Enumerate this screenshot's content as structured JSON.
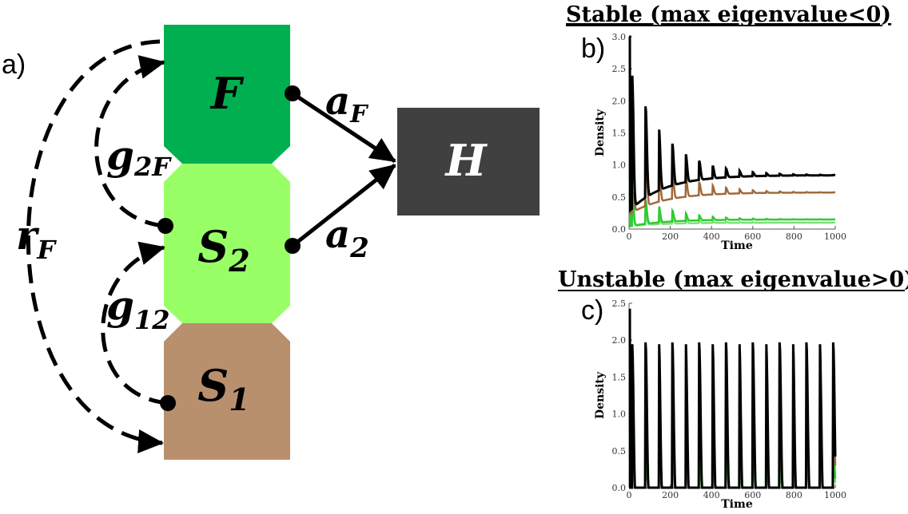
{
  "panels": {
    "a": "a)",
    "b": "b)",
    "c": "c)"
  },
  "diagram": {
    "nodes": {
      "F": {
        "label": "F",
        "color": "#00b050"
      },
      "S2": {
        "label": "S",
        "sub": "2",
        "color": "#99ff66"
      },
      "S1": {
        "label": "S",
        "sub": "1",
        "color": "#b8906e"
      },
      "H": {
        "label": "H",
        "color": "#404040"
      }
    },
    "edges": {
      "aF": {
        "label": "a",
        "sub": "F"
      },
      "a2": {
        "label": "a",
        "sub": "2"
      },
      "g2F": {
        "label": "g",
        "sub": "2F"
      },
      "g12": {
        "label": "g",
        "sub": "12"
      },
      "rF": {
        "label": "r",
        "sub": "F"
      }
    }
  },
  "colors": {
    "black": "#000000",
    "brown": "#a0693c",
    "green": "#2ecc2e",
    "lightgreen": "#7ee07e"
  },
  "chart_data": [
    {
      "type": "line",
      "title": "Stable (max eigenvalue<0)",
      "xlabel": "Time",
      "ylabel": "Density",
      "xlim": [
        0,
        1000
      ],
      "ylim": [
        0,
        3.0
      ],
      "xticks": [
        "0",
        "200",
        "400",
        "600",
        "800",
        "1000"
      ],
      "yticks": [
        "0.0",
        "0.5",
        "1.0",
        "1.5",
        "2.0",
        "2.5",
        "3.0"
      ],
      "period": 65,
      "series": [
        {
          "color": "black",
          "base": 0.62,
          "amp": 2.3,
          "decay": 0.006,
          "troughs": 0.22
        },
        {
          "color": "brown",
          "base": 0.47,
          "amp": 1.6,
          "decay": 0.006,
          "troughs": 0.1
        },
        {
          "color": "green",
          "base": 0.13,
          "amp": 0.6,
          "decay": 0.006,
          "troughs": 0.02
        },
        {
          "color": "lightgreen",
          "base": 0.09,
          "amp": 0.3,
          "decay": 0.006,
          "troughs": 0.01
        }
      ]
    },
    {
      "type": "line",
      "title": "Unstable (max eigenvalue>0)",
      "xlabel": "Time",
      "ylabel": "Density",
      "xlim": [
        0,
        1000
      ],
      "ylim": [
        0,
        2.5
      ],
      "xticks": [
        "0",
        "200",
        "400",
        "600",
        "800",
        "1000"
      ],
      "yticks": [
        "0.0",
        "0.5",
        "1.0",
        "1.5",
        "2.0",
        "2.5"
      ],
      "period": 65,
      "series": [
        {
          "color": "black",
          "base": 0.1,
          "amp": 2.2,
          "decay": 0.0,
          "troughs": 0.05
        },
        {
          "color": "brown",
          "base": 0.05,
          "amp": 1.7,
          "decay": 0.0,
          "troughs": 0.02
        },
        {
          "color": "green",
          "base": 0.02,
          "amp": 0.7,
          "decay": 0.0,
          "troughs": 0.01
        },
        {
          "color": "lightgreen",
          "base": 0.01,
          "amp": 0.35,
          "decay": 0.0,
          "troughs": 0.0
        }
      ]
    }
  ]
}
